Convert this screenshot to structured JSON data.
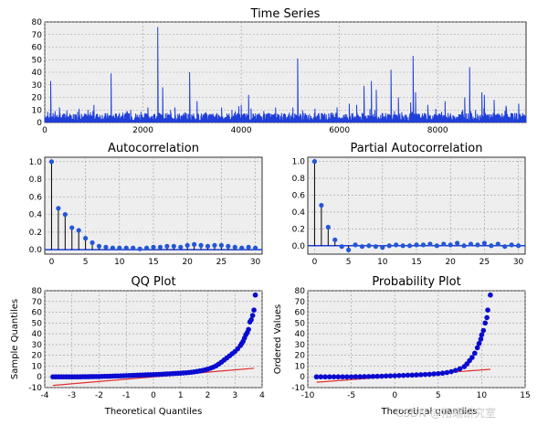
{
  "colors": {
    "line": "#1f3fd8",
    "stem": "#000000",
    "marker": "#2456d6",
    "qq_marker": "#0a0ad0",
    "ref": "#e03030",
    "panel": "#eeeeee",
    "grid": "#9a9a9a"
  },
  "watermark": "CSDN @拓端研究室",
  "chart_data": [
    {
      "id": "ts",
      "type": "line",
      "title": "Time Series",
      "xlim": [
        0,
        9800
      ],
      "ylim": [
        0,
        80
      ],
      "xticks": [
        0,
        2000,
        4000,
        6000,
        8000
      ],
      "yticks": [
        0,
        10,
        20,
        30,
        40,
        50,
        60,
        70,
        80
      ],
      "baseline": 4.5,
      "spikes": [
        [
          120,
          33
        ],
        [
          300,
          12
        ],
        [
          700,
          11
        ],
        [
          1000,
          14
        ],
        [
          1350,
          39
        ],
        [
          1750,
          10
        ],
        [
          2100,
          12
        ],
        [
          2300,
          76
        ],
        [
          2400,
          28
        ],
        [
          2650,
          12
        ],
        [
          2950,
          40
        ],
        [
          3100,
          17
        ],
        [
          3600,
          12
        ],
        [
          3950,
          13
        ],
        [
          4000,
          14
        ],
        [
          4150,
          22
        ],
        [
          4700,
          12
        ],
        [
          5050,
          12
        ],
        [
          5150,
          51
        ],
        [
          5500,
          11
        ],
        [
          5950,
          12
        ],
        [
          6200,
          15
        ],
        [
          6350,
          14
        ],
        [
          6500,
          29
        ],
        [
          6650,
          33
        ],
        [
          6750,
          26
        ],
        [
          7050,
          42
        ],
        [
          7200,
          20
        ],
        [
          7450,
          16
        ],
        [
          7500,
          53
        ],
        [
          7550,
          24
        ],
        [
          7800,
          14
        ],
        [
          8150,
          17
        ],
        [
          8550,
          20
        ],
        [
          8650,
          44
        ],
        [
          8900,
          24
        ],
        [
          8950,
          22
        ],
        [
          9150,
          18
        ],
        [
          9400,
          12
        ],
        [
          9650,
          15
        ]
      ]
    },
    {
      "id": "acf",
      "type": "stem",
      "title": "Autocorrelation",
      "xlim": [
        -1,
        31
      ],
      "ylim": [
        -0.05,
        1.05
      ],
      "xticks": [
        0,
        5,
        10,
        15,
        20,
        25,
        30
      ],
      "yticks": [
        0.0,
        0.2,
        0.4,
        0.6,
        0.8,
        1.0
      ],
      "x": [
        0,
        1,
        2,
        3,
        4,
        5,
        6,
        7,
        8,
        9,
        10,
        11,
        12,
        13,
        14,
        15,
        16,
        17,
        18,
        19,
        20,
        21,
        22,
        23,
        24,
        25,
        26,
        27,
        28,
        29,
        30
      ],
      "y": [
        1.0,
        0.47,
        0.4,
        0.25,
        0.22,
        0.13,
        0.08,
        0.04,
        0.03,
        0.02,
        0.02,
        0.02,
        0.02,
        0.01,
        0.02,
        0.03,
        0.03,
        0.04,
        0.04,
        0.03,
        0.05,
        0.06,
        0.05,
        0.04,
        0.05,
        0.05,
        0.04,
        0.03,
        0.02,
        0.03,
        0.02
      ]
    },
    {
      "id": "pacf",
      "type": "stem",
      "title": "Partial Autocorrelation",
      "xlim": [
        -1,
        31
      ],
      "ylim": [
        -0.1,
        1.05
      ],
      "xticks": [
        0,
        5,
        10,
        15,
        20,
        25,
        30
      ],
      "yticks": [
        0.0,
        0.2,
        0.4,
        0.6,
        0.8,
        1.0
      ],
      "x": [
        0,
        1,
        2,
        3,
        4,
        5,
        6,
        7,
        8,
        9,
        10,
        11,
        12,
        13,
        14,
        15,
        16,
        17,
        18,
        19,
        20,
        21,
        22,
        23,
        24,
        25,
        26,
        27,
        28,
        29,
        30
      ],
      "y": [
        1.0,
        0.48,
        0.22,
        0.07,
        -0.01,
        -0.05,
        0.01,
        -0.01,
        0.0,
        -0.01,
        -0.02,
        0.0,
        0.01,
        0.0,
        0.0,
        0.01,
        0.01,
        0.02,
        0.0,
        0.02,
        0.01,
        0.03,
        0.0,
        0.02,
        0.01,
        0.03,
        0.0,
        0.02,
        -0.01,
        0.01,
        0.0
      ]
    },
    {
      "id": "qq",
      "type": "scatter",
      "title": "QQ Plot",
      "xlabel": "Theoretical Quantiles",
      "ylabel": "Sample Quantiles",
      "xlim": [
        -4,
        4
      ],
      "ylim": [
        -10,
        80
      ],
      "xticks": [
        -4,
        -3,
        -2,
        -1,
        0,
        1,
        2,
        3,
        4
      ],
      "yticks": [
        -10,
        0,
        10,
        20,
        30,
        40,
        50,
        60,
        70,
        80
      ],
      "ref_line": [
        [
          -3.7,
          -8
        ],
        [
          3.7,
          8
        ]
      ],
      "points": [
        [
          -3.7,
          0
        ],
        [
          -3.6,
          0
        ],
        [
          -3.5,
          0
        ],
        [
          -3.4,
          0
        ],
        [
          -3.3,
          0
        ],
        [
          -3.2,
          0
        ],
        [
          -3.1,
          0
        ],
        [
          -3.0,
          0
        ],
        [
          -2.9,
          0
        ],
        [
          -2.8,
          0
        ],
        [
          -2.7,
          0
        ],
        [
          -2.6,
          0.1
        ],
        [
          -2.5,
          0.1
        ],
        [
          -2.4,
          0.1
        ],
        [
          -2.3,
          0.2
        ],
        [
          -2.2,
          0.2
        ],
        [
          -2.1,
          0.3
        ],
        [
          -2.0,
          0.3
        ],
        [
          -1.9,
          0.4
        ],
        [
          -1.8,
          0.5
        ],
        [
          -1.7,
          0.5
        ],
        [
          -1.6,
          0.6
        ],
        [
          -1.5,
          0.7
        ],
        [
          -1.4,
          0.8
        ],
        [
          -1.3,
          0.8
        ],
        [
          -1.2,
          0.9
        ],
        [
          -1.1,
          1.0
        ],
        [
          -1.0,
          1.1
        ],
        [
          -0.9,
          1.2
        ],
        [
          -0.8,
          1.3
        ],
        [
          -0.7,
          1.4
        ],
        [
          -0.6,
          1.5
        ],
        [
          -0.5,
          1.6
        ],
        [
          -0.4,
          1.7
        ],
        [
          -0.3,
          1.8
        ],
        [
          -0.2,
          1.9
        ],
        [
          -0.1,
          2.0
        ],
        [
          0.0,
          2.1
        ],
        [
          0.1,
          2.2
        ],
        [
          0.2,
          2.3
        ],
        [
          0.3,
          2.4
        ],
        [
          0.4,
          2.6
        ],
        [
          0.5,
          2.7
        ],
        [
          0.6,
          2.8
        ],
        [
          0.7,
          3.0
        ],
        [
          0.8,
          3.1
        ],
        [
          0.9,
          3.3
        ],
        [
          1.0,
          3.4
        ],
        [
          1.1,
          3.6
        ],
        [
          1.2,
          3.8
        ],
        [
          1.3,
          4.0
        ],
        [
          1.4,
          4.3
        ],
        [
          1.5,
          4.6
        ],
        [
          1.6,
          5.0
        ],
        [
          1.7,
          5.4
        ],
        [
          1.8,
          5.9
        ],
        [
          1.9,
          6.5
        ],
        [
          2.0,
          7.2
        ],
        [
          2.1,
          8.0
        ],
        [
          2.2,
          9.0
        ],
        [
          2.3,
          10.2
        ],
        [
          2.4,
          11.8
        ],
        [
          2.5,
          13.6
        ],
        [
          2.6,
          15.6
        ],
        [
          2.7,
          17.5
        ],
        [
          2.8,
          19.5
        ],
        [
          2.9,
          21.5
        ],
        [
          3.0,
          23.5
        ],
        [
          3.1,
          26.0
        ],
        [
          3.2,
          29.0
        ],
        [
          3.25,
          31.0
        ],
        [
          3.3,
          33.0
        ],
        [
          3.35,
          36.0
        ],
        [
          3.4,
          39.0
        ],
        [
          3.45,
          41.0
        ],
        [
          3.5,
          44.0
        ],
        [
          3.55,
          51.0
        ],
        [
          3.6,
          53.0
        ],
        [
          3.65,
          57.0
        ],
        [
          3.7,
          62.0
        ],
        [
          3.75,
          76.0
        ]
      ]
    },
    {
      "id": "prob",
      "type": "scatter",
      "title": "Probability Plot",
      "xlabel": "Theoretical quantiles",
      "ylabel": "Ordered Values",
      "xlim": [
        -10,
        15
      ],
      "ylim": [
        -10,
        80
      ],
      "xticks": [
        -10,
        -5,
        0,
        5,
        10,
        15
      ],
      "yticks": [
        -10,
        0,
        10,
        20,
        30,
        40,
        50,
        60,
        70,
        80
      ],
      "ref_line": [
        [
          -9,
          -5
        ],
        [
          11,
          7
        ]
      ],
      "points": [
        [
          -9.0,
          0
        ],
        [
          -8.5,
          0
        ],
        [
          -8.0,
          0
        ],
        [
          -7.5,
          0
        ],
        [
          -7.0,
          0
        ],
        [
          -6.5,
          0
        ],
        [
          -6.0,
          0
        ],
        [
          -5.5,
          0
        ],
        [
          -5.0,
          0
        ],
        [
          -4.5,
          0.1
        ],
        [
          -4.0,
          0.1
        ],
        [
          -3.5,
          0.2
        ],
        [
          -3.0,
          0.3
        ],
        [
          -2.5,
          0.4
        ],
        [
          -2.0,
          0.5
        ],
        [
          -1.5,
          0.6
        ],
        [
          -1.0,
          0.8
        ],
        [
          -0.5,
          0.9
        ],
        [
          0.0,
          1.0
        ],
        [
          0.5,
          1.2
        ],
        [
          1.0,
          1.3
        ],
        [
          1.5,
          1.5
        ],
        [
          2.0,
          1.6
        ],
        [
          2.5,
          1.8
        ],
        [
          3.0,
          2.0
        ],
        [
          3.5,
          2.2
        ],
        [
          4.0,
          2.4
        ],
        [
          4.5,
          2.7
        ],
        [
          5.0,
          3.0
        ],
        [
          5.5,
          3.4
        ],
        [
          6.0,
          4.0
        ],
        [
          6.5,
          4.8
        ],
        [
          7.0,
          6.0
        ],
        [
          7.5,
          7.5
        ],
        [
          8.0,
          9.5
        ],
        [
          8.3,
          12.0
        ],
        [
          8.6,
          15.0
        ],
        [
          8.9,
          18.0
        ],
        [
          9.2,
          22.0
        ],
        [
          9.5,
          27.0
        ],
        [
          9.7,
          31.0
        ],
        [
          9.9,
          35.0
        ],
        [
          10.0,
          39.0
        ],
        [
          10.2,
          43.0
        ],
        [
          10.4,
          50.0
        ],
        [
          10.6,
          55.0
        ],
        [
          10.7,
          62.0
        ],
        [
          11.0,
          76.0
        ]
      ]
    }
  ]
}
